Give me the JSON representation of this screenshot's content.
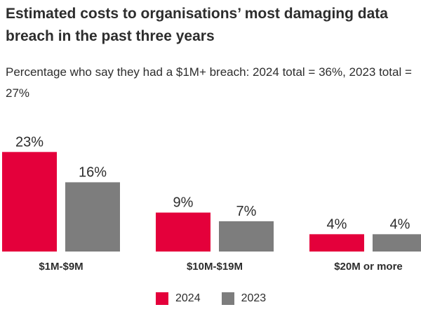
{
  "chart_data": {
    "type": "bar",
    "title": "Estimated costs to organisations’ most damaging data breach in the past three years",
    "subtitle": "Percentage who say they had a $1M+ breach: 2024 total = 36%, 2023 total = 27%",
    "categories": [
      "$1M-$9M",
      "$10M-$19M",
      "$20M or more"
    ],
    "series": [
      {
        "name": "2024",
        "color": "#e4003b",
        "values": [
          23,
          9,
          4
        ],
        "labels": [
          "23%",
          "9%",
          "4%"
        ]
      },
      {
        "name": "2023",
        "color": "#7d7d7d",
        "values": [
          16,
          7,
          4
        ],
        "labels": [
          "16%",
          "7%",
          "4%"
        ]
      }
    ],
    "ylim": [
      0,
      25
    ],
    "grid": false,
    "legend_position": "bottom"
  }
}
